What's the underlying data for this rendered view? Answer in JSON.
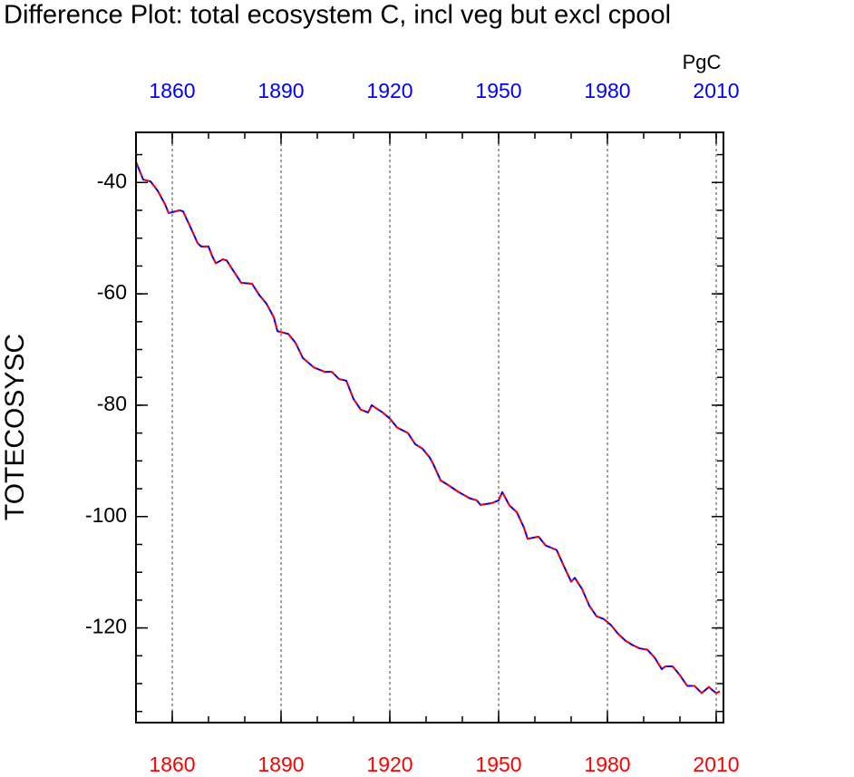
{
  "chart_data": {
    "type": "line",
    "title": "Difference Plot: total ecosystem C, incl veg but excl cpool",
    "units": "PgC",
    "y_label": "TOTECOSYSC",
    "x": [
      1850,
      1852,
      1854,
      1856,
      1858,
      1859,
      1862,
      1863,
      1865,
      1867,
      1868,
      1870,
      1871,
      1872,
      1874,
      1875,
      1877,
      1879,
      1882,
      1884,
      1886,
      1888,
      1889,
      1892,
      1894,
      1896,
      1899,
      1902,
      1904,
      1906,
      1908,
      1910,
      1912,
      1914,
      1915,
      1918,
      1920,
      1922,
      1925,
      1927,
      1929,
      1931,
      1932,
      1934,
      1936,
      1939,
      1942,
      1944,
      1945,
      1948,
      1950,
      1951,
      1953,
      1955,
      1957,
      1958,
      1961,
      1963,
      1966,
      1968,
      1970,
      1971,
      1973,
      1975,
      1977,
      1979,
      1981,
      1983,
      1985,
      1987,
      1989,
      1991,
      1993,
      1995,
      1996,
      1998,
      2000,
      2002,
      2004,
      2006,
      2008,
      2009,
      2010,
      2011
    ],
    "series": [
      {
        "color": "#0000ff",
        "dash": false,
        "values": [
          -36.3,
          -39.5,
          -39.8,
          -41.5,
          -43.9,
          -45.5,
          -45,
          -45.2,
          -48,
          -50.9,
          -51.5,
          -51.5,
          -53.2,
          -54.5,
          -53.8,
          -54,
          -56,
          -58,
          -58.2,
          -60.2,
          -61.8,
          -64.2,
          -66.7,
          -67.2,
          -68.8,
          -71.5,
          -73.2,
          -74,
          -74,
          -75.3,
          -75.6,
          -78.9,
          -80.8,
          -81.3,
          -80,
          -81.3,
          -82.4,
          -84,
          -85,
          -87,
          -87.8,
          -89.4,
          -90.6,
          -93.5,
          -94.3,
          -95.6,
          -96.7,
          -97.1,
          -97.9,
          -97.6,
          -97.1,
          -95.6,
          -98,
          -99.2,
          -102,
          -104,
          -103.6,
          -105.2,
          -106,
          -108.9,
          -111.7,
          -111,
          -113,
          -116,
          -117.9,
          -118.4,
          -119.5,
          -121.1,
          -122.3,
          -123.1,
          -123.7,
          -123.9,
          -125.3,
          -127.4,
          -126.9,
          -126.9,
          -128.5,
          -130.4,
          -130.4,
          -131.7,
          -130.6,
          -131.2,
          -131.7,
          -131.4
        ]
      },
      {
        "color": "#ff0000",
        "dash": true,
        "values": [
          -36.3,
          -39.5,
          -39.8,
          -41.5,
          -43.9,
          -45.5,
          -45,
          -45.2,
          -48,
          -50.9,
          -51.5,
          -51.5,
          -53.2,
          -54.5,
          -53.8,
          -54,
          -56,
          -58,
          -58.2,
          -60.2,
          -61.8,
          -64.2,
          -66.7,
          -67.2,
          -68.8,
          -71.5,
          -73.2,
          -74,
          -74,
          -75.3,
          -75.6,
          -78.9,
          -80.8,
          -81.3,
          -80,
          -81.3,
          -82.4,
          -84,
          -85,
          -87,
          -87.8,
          -89.4,
          -90.6,
          -93.5,
          -94.3,
          -95.6,
          -96.7,
          -97.1,
          -97.9,
          -97.6,
          -97.1,
          -95.6,
          -98,
          -99.2,
          -102,
          -104,
          -103.6,
          -105.2,
          -106,
          -108.9,
          -111.7,
          -111,
          -113,
          -116,
          -117.9,
          -118.4,
          -119.5,
          -121.1,
          -122.3,
          -123.1,
          -123.7,
          -123.9,
          -125.3,
          -127.4,
          -126.9,
          -126.9,
          -128.5,
          -130.4,
          -130.4,
          -131.7,
          -130.6,
          -131.2,
          -131.7,
          -131.4
        ]
      }
    ],
    "xlim": [
      1850,
      2012
    ],
    "xticks": [
      1860,
      1890,
      1920,
      1950,
      1980,
      2010
    ],
    "ylim": [
      -137,
      -31
    ],
    "yticks": [
      -40,
      -60,
      -80,
      -100,
      -120
    ],
    "x_grid": true,
    "top_tick_color": "#0000ff",
    "bottom_tick_color": "#ff0000"
  }
}
